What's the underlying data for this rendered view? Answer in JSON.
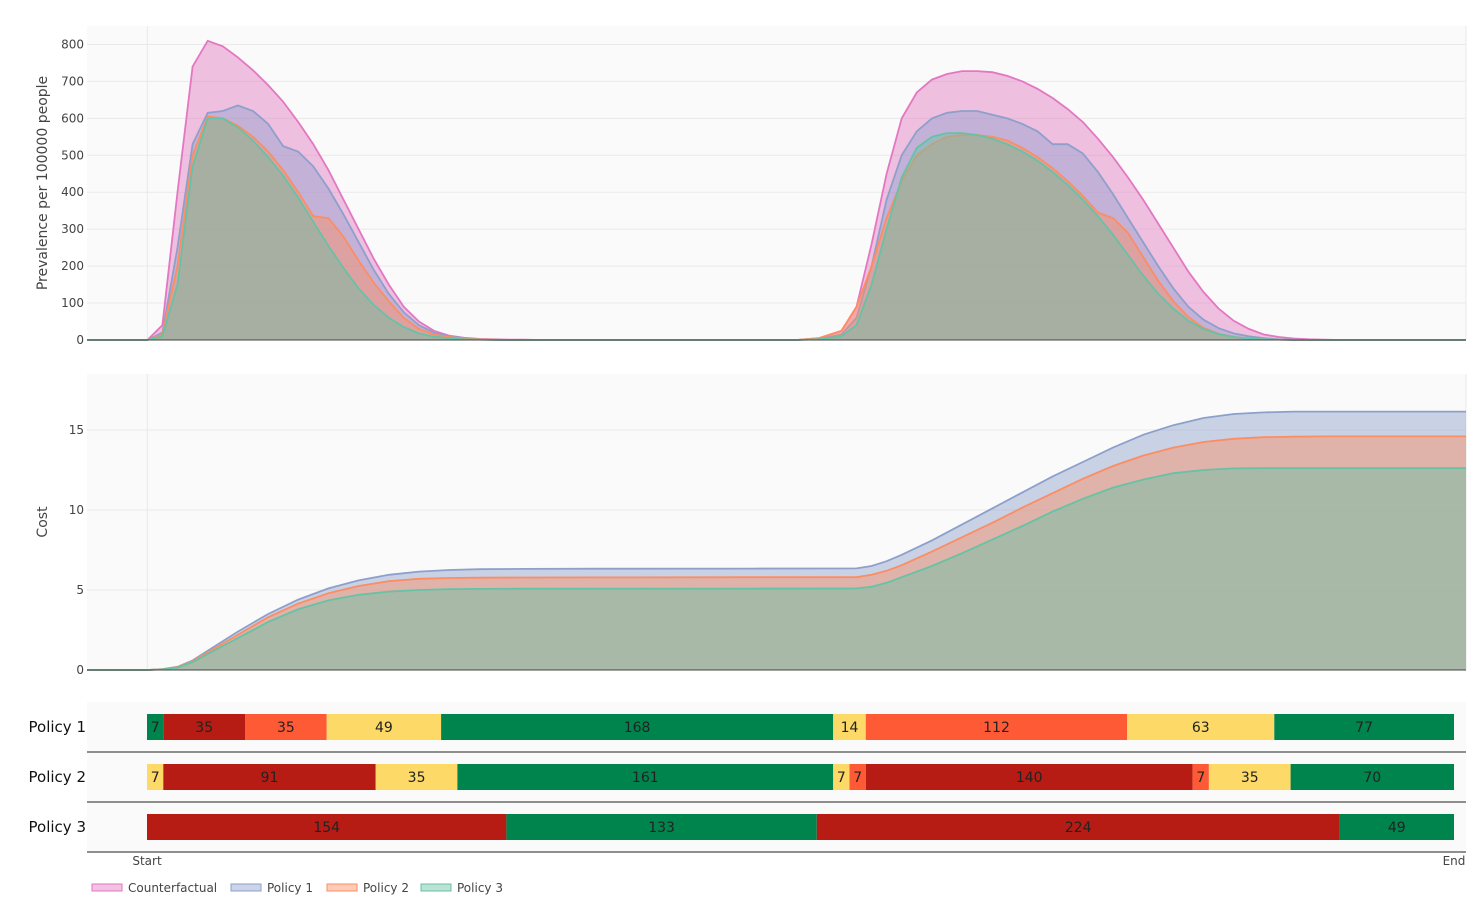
{
  "colors": {
    "Counterfactual": "#e377c2",
    "Policy 1": "#8da0cb",
    "Policy 2": "#fc8d62",
    "Policy 3": "#66c2a5",
    "status_red": "#b71c14",
    "status_orange": "#ff5a36",
    "status_yellow": "#fdd967",
    "status_green": "#00844d"
  },
  "chart_data": [
    {
      "type": "area",
      "ylabel": "Prevalence per 100000 people",
      "ylim": [
        0,
        850
      ],
      "yticks": [
        0,
        100,
        200,
        300,
        400,
        500,
        600,
        700,
        800
      ],
      "xlim": [
        -40,
        874
      ],
      "x": [
        0,
        10,
        20,
        30,
        40,
        50,
        60,
        70,
        80,
        90,
        100,
        110,
        120,
        130,
        140,
        150,
        160,
        170,
        180,
        190,
        200,
        210,
        220,
        230,
        240,
        250,
        260,
        270,
        280,
        300,
        350,
        400,
        430,
        445,
        460,
        470,
        480,
        490,
        500,
        510,
        520,
        530,
        540,
        550,
        560,
        570,
        580,
        590,
        600,
        610,
        620,
        630,
        640,
        650,
        660,
        670,
        680,
        690,
        700,
        710,
        720,
        730,
        740,
        750,
        760,
        770,
        780,
        790,
        800,
        810,
        830,
        850,
        874
      ],
      "series": [
        {
          "name": "Counterfactual",
          "values": [
            0,
            40,
            400,
            740,
            810,
            795,
            765,
            730,
            690,
            645,
            590,
            530,
            460,
            380,
            300,
            220,
            150,
            90,
            50,
            25,
            12,
            6,
            3,
            2,
            1,
            1,
            0,
            0,
            0,
            0,
            0,
            0,
            0,
            5,
            25,
            90,
            260,
            450,
            600,
            670,
            705,
            720,
            728,
            728,
            725,
            715,
            700,
            680,
            655,
            625,
            590,
            545,
            495,
            440,
            380,
            315,
            250,
            185,
            130,
            85,
            52,
            30,
            15,
            8,
            4,
            2,
            1,
            0,
            0,
            0,
            0,
            0,
            0
          ]
        },
        {
          "name": "Policy 1",
          "values": [
            0,
            20,
            250,
            530,
            615,
            620,
            635,
            620,
            585,
            525,
            510,
            470,
            410,
            340,
            265,
            190,
            125,
            75,
            40,
            20,
            10,
            5,
            2,
            1,
            0,
            0,
            0,
            0,
            0,
            0,
            0,
            0,
            0,
            3,
            15,
            60,
            200,
            380,
            500,
            565,
            600,
            615,
            620,
            620,
            610,
            600,
            585,
            565,
            530,
            530,
            505,
            455,
            395,
            330,
            265,
            200,
            140,
            90,
            55,
            32,
            18,
            10,
            5,
            2,
            1,
            0,
            0,
            0,
            0,
            0,
            0,
            0,
            0
          ]
        },
        {
          "name": "Policy 2",
          "values": [
            0,
            15,
            200,
            500,
            605,
            600,
            580,
            550,
            510,
            460,
            400,
            335,
            330,
            280,
            215,
            155,
            105,
            60,
            30,
            15,
            8,
            4,
            2,
            1,
            0,
            0,
            0,
            0,
            0,
            0,
            0,
            0,
            0,
            5,
            25,
            90,
            200,
            330,
            430,
            500,
            530,
            550,
            555,
            555,
            550,
            540,
            520,
            495,
            465,
            430,
            390,
            345,
            330,
            290,
            225,
            160,
            105,
            62,
            33,
            17,
            8,
            4,
            2,
            1,
            0,
            0,
            0,
            0,
            0,
            0,
            0,
            0,
            0
          ]
        },
        {
          "name": "Policy 3",
          "values": [
            0,
            10,
            150,
            470,
            600,
            600,
            575,
            540,
            495,
            445,
            385,
            320,
            255,
            195,
            140,
            95,
            60,
            35,
            18,
            9,
            5,
            2,
            1,
            0,
            0,
            0,
            0,
            0,
            0,
            0,
            0,
            0,
            0,
            2,
            10,
            40,
            150,
            300,
            440,
            520,
            550,
            560,
            560,
            555,
            545,
            530,
            510,
            485,
            455,
            420,
            380,
            335,
            285,
            230,
            175,
            125,
            85,
            52,
            30,
            16,
            8,
            4,
            2,
            1,
            0,
            0,
            0,
            0,
            0,
            0,
            0,
            0,
            0
          ]
        }
      ]
    },
    {
      "type": "area",
      "ylabel": "Cost",
      "ylim": [
        0,
        18.5
      ],
      "yticks": [
        0,
        5,
        10,
        15
      ],
      "xlim": [
        -40,
        874
      ],
      "x": [
        0,
        10,
        20,
        30,
        40,
        60,
        80,
        100,
        120,
        140,
        160,
        180,
        200,
        220,
        250,
        300,
        400,
        470,
        480,
        490,
        500,
        520,
        540,
        560,
        580,
        600,
        620,
        640,
        660,
        680,
        700,
        720,
        740,
        760,
        780,
        800,
        820,
        840,
        874
      ],
      "series": [
        {
          "name": "Policy 1",
          "values": [
            0,
            0.05,
            0.2,
            0.6,
            1.2,
            2.4,
            3.5,
            4.4,
            5.1,
            5.6,
            5.95,
            6.15,
            6.25,
            6.3,
            6.32,
            6.33,
            6.34,
            6.35,
            6.5,
            6.8,
            7.2,
            8.1,
            9.1,
            10.1,
            11.1,
            12.1,
            13.0,
            13.9,
            14.7,
            15.3,
            15.75,
            16.0,
            16.1,
            16.15,
            16.15,
            16.15,
            16.15,
            16.15,
            16.15
          ]
        },
        {
          "name": "Policy 2",
          "values": [
            0,
            0.05,
            0.18,
            0.55,
            1.1,
            2.2,
            3.3,
            4.15,
            4.8,
            5.25,
            5.55,
            5.7,
            5.75,
            5.77,
            5.78,
            5.79,
            5.8,
            5.8,
            5.95,
            6.2,
            6.55,
            7.4,
            8.3,
            9.2,
            10.15,
            11.05,
            11.95,
            12.75,
            13.4,
            13.9,
            14.25,
            14.45,
            14.55,
            14.58,
            14.6,
            14.6,
            14.6,
            14.6,
            14.6
          ]
        },
        {
          "name": "Policy 3",
          "values": [
            0,
            0.04,
            0.15,
            0.5,
            1.0,
            2.0,
            3.0,
            3.8,
            4.35,
            4.7,
            4.9,
            5.0,
            5.05,
            5.07,
            5.08,
            5.08,
            5.09,
            5.1,
            5.2,
            5.45,
            5.8,
            6.5,
            7.3,
            8.15,
            9.0,
            9.9,
            10.7,
            11.4,
            11.9,
            12.3,
            12.5,
            12.6,
            12.62,
            12.62,
            12.62,
            12.62,
            12.62,
            12.62,
            12.62
          ]
        }
      ]
    },
    {
      "type": "timeline",
      "xtick_labels": [
        "Start",
        "End"
      ],
      "rows": [
        {
          "name": "Policy 1",
          "segments": [
            {
              "value": 7,
              "status": "status_green"
            },
            {
              "value": 35,
              "status": "status_red"
            },
            {
              "value": 35,
              "status": "status_orange"
            },
            {
              "value": 49,
              "status": "status_yellow"
            },
            {
              "value": 168,
              "status": "status_green"
            },
            {
              "value": 14,
              "status": "status_yellow"
            },
            {
              "value": 112,
              "status": "status_orange"
            },
            {
              "value": 63,
              "status": "status_yellow"
            },
            {
              "value": 77,
              "status": "status_green"
            }
          ]
        },
        {
          "name": "Policy 2",
          "segments": [
            {
              "value": 7,
              "status": "status_yellow"
            },
            {
              "value": 91,
              "status": "status_red"
            },
            {
              "value": 35,
              "status": "status_yellow"
            },
            {
              "value": 161,
              "status": "status_green"
            },
            {
              "value": 7,
              "status": "status_yellow"
            },
            {
              "value": 7,
              "status": "status_orange"
            },
            {
              "value": 140,
              "status": "status_red"
            },
            {
              "value": 7,
              "status": "status_orange"
            },
            {
              "value": 35,
              "status": "status_yellow"
            },
            {
              "value": 70,
              "status": "status_green"
            }
          ]
        },
        {
          "name": "Policy 3",
          "segments": [
            {
              "value": 154,
              "status": "status_red"
            },
            {
              "value": 133,
              "status": "status_green"
            },
            {
              "value": 224,
              "status": "status_red"
            },
            {
              "value": 49,
              "status": "status_green"
            }
          ]
        }
      ]
    }
  ],
  "legend": {
    "placement": "bottom-left",
    "items": [
      "Counterfactual",
      "Policy 1",
      "Policy 2",
      "Policy 3"
    ]
  }
}
